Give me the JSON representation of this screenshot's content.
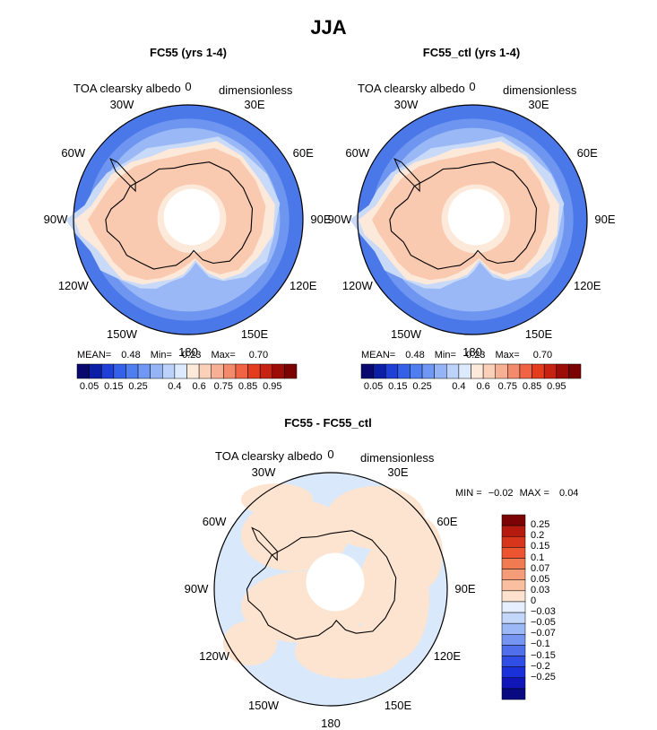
{
  "main_title": "JJA",
  "panels": [
    {
      "title": "FC55 (yrs 1-4)",
      "variable": "TOA clearsky albedo",
      "units": "dimensionless",
      "stats": {
        "mean_label": "MEAN=",
        "mean": "0.48",
        "min_label": "Min=",
        "min": "0.23",
        "max_label": "Max=",
        "max": "0.70"
      }
    },
    {
      "title": "FC55_ctl (yrs 1-4)",
      "variable": "TOA clearsky albedo",
      "units": "dimensionless",
      "stats": {
        "mean_label": "MEAN=",
        "mean": "0.48",
        "min_label": "Min=",
        "min": "0.23",
        "max_label": "Max=",
        "max": "0.70"
      }
    },
    {
      "title": "FC55 - FC55_ctl",
      "variable": "TOA clearsky albedo",
      "units": "dimensionless",
      "stats": {
        "min_label": "MIN =",
        "min": "−0.02",
        "max_label": "MAX =",
        "max": "0.04"
      }
    }
  ],
  "longitude_labels": [
    "0",
    "30E",
    "60E",
    "90E",
    "120E",
    "150E",
    "180",
    "150W",
    "120W",
    "90W",
    "60W",
    "30W"
  ],
  "colorbar_abs": {
    "colors": [
      "#08086e",
      "#0b1fa6",
      "#1f3fd6",
      "#3560e8",
      "#4f7ef0",
      "#6f97f3",
      "#95b4f6",
      "#bcd2fa",
      "#ddeafd",
      "#fde9da",
      "#fbd0b8",
      "#f8b094",
      "#f48a6c",
      "#f06343",
      "#e43d1e",
      "#c72312",
      "#9c0d07",
      "#7c0303"
    ],
    "labels": [
      "0.05",
      "0.15",
      "0.25",
      "0.4",
      "0.6",
      "0.75",
      "0.85",
      "0.95"
    ]
  },
  "colorbar_diff": {
    "colors": [
      "#7c0303",
      "#b51a0e",
      "#d8361c",
      "#ec5530",
      "#f07a52",
      "#f49c78",
      "#f9bfa0",
      "#fde3cf",
      "#e6efff",
      "#c5d6fb",
      "#9cb8f6",
      "#7595f0",
      "#4f6feb",
      "#2f4fe4",
      "#1a30d8",
      "#1016b8",
      "#080a82"
    ],
    "labels": [
      "0.25",
      "0.2",
      "0.15",
      "0.1",
      "0.07",
      "0.05",
      "0.03",
      "0",
      "−0.03",
      "−0.05",
      "−0.07",
      "−0.1",
      "−0.15",
      "−0.2",
      "−0.25"
    ]
  },
  "map_colors": {
    "ocean_outer": "#4a78e8",
    "ocean_mid": "#6e96f0",
    "ocean_light": "#9ab8f5",
    "ice_edge": "#c9daf9",
    "ice_cream": "#fde9da",
    "ice_peach": "#f9c9b0",
    "pole_hole": "#ffffff",
    "diff_base": "#d9e8fb",
    "diff_pos": "#fde4d0"
  }
}
